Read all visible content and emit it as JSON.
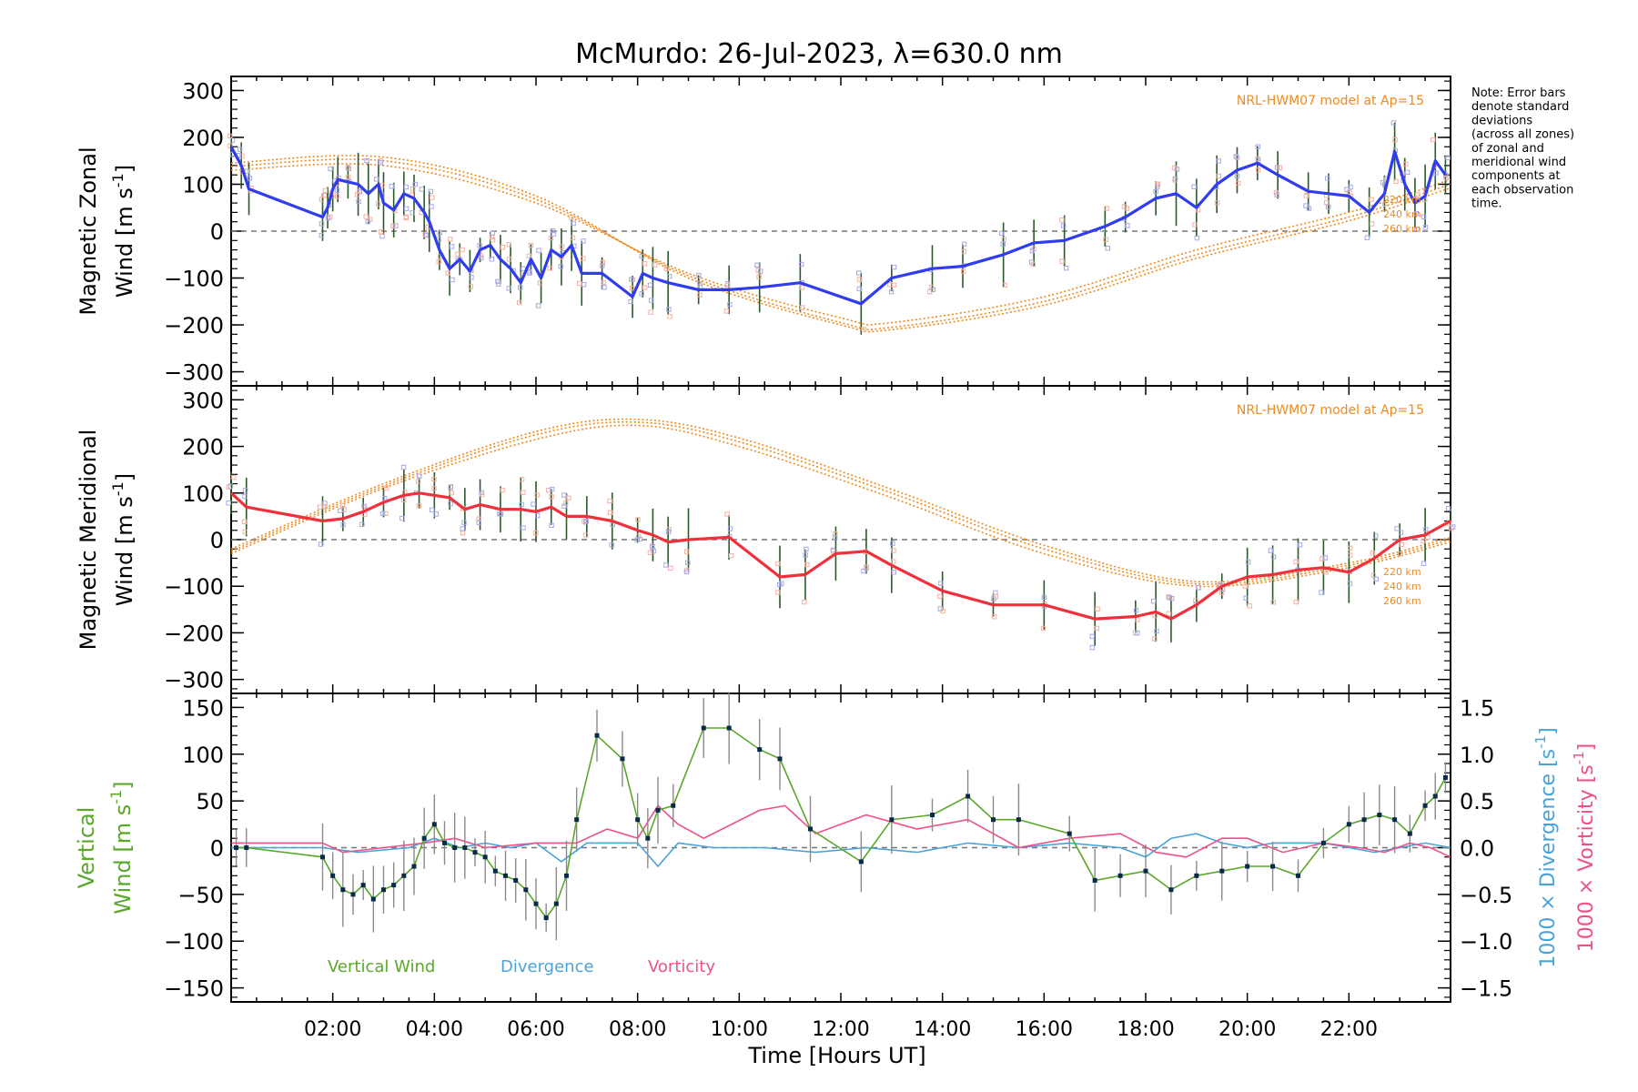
{
  "title": "McMurdo: 26-Jul-2023, λ=630.0 nm",
  "note": [
    "Note: Error bars",
    "denote standard",
    "deviations",
    "(across all zones)",
    "of zonal and",
    "meridional wind",
    "components at",
    "each observation",
    "time."
  ],
  "xlabel": "Time [Hours UT]",
  "x_ticks": [
    "02:00",
    "04:00",
    "06:00",
    "08:00",
    "10:00",
    "12:00",
    "14:00",
    "16:00",
    "18:00",
    "20:00",
    "22:00"
  ],
  "model_label": "NRL-HWM07 model at Ap=15",
  "altitudes": [
    "220 km",
    "240 km",
    "260 km"
  ],
  "legend": {
    "vertical": "Vertical Wind",
    "divergence": "Divergence",
    "vorticity": "Vorticity"
  },
  "colors": {
    "zonal": "#2f3cf0",
    "meridional": "#f0303a",
    "vertical": "#5aa82a",
    "divergence": "#4aa3d8",
    "vorticity": "#ef4f8a",
    "model": "#f08a1e",
    "scatter": "#a8a8e8",
    "errbar": "#2a5a2a",
    "point": "#0a2a4a"
  },
  "panels": {
    "zonal": {
      "ylabel1": "Magnetic Zonal",
      "ylabel2": "Wind [m s",
      "sup": "-1",
      "ylabel_end": "]",
      "ticks": [
        "300",
        "200",
        "100",
        "0",
        "−100",
        "−200",
        "−300"
      ]
    },
    "meridional": {
      "ylabel1": "Magnetic Meridional",
      "ylabel2": "Wind [m s",
      "sup": "-1",
      "ylabel_end": "]",
      "ticks": [
        "300",
        "200",
        "100",
        "0",
        "−100",
        "−200",
        "−300"
      ]
    },
    "vertical": {
      "ylabel1": "Vertical",
      "ylabel2": "Wind [m s",
      "sup": "-1",
      "ylabel_end": "]",
      "ticks": [
        "150",
        "100",
        "50",
        "0",
        "−50",
        "−100",
        "−150"
      ],
      "right_ticks": [
        "1.5",
        "1.0",
        "0.5",
        "0.0",
        "−0.5",
        "−1.0",
        "−1.5"
      ],
      "right_label_div": "1000 × Divergence [s",
      "right_label_vor": "1000 × Vorticity [s",
      "right_sup": "-1",
      "right_end": "]"
    }
  },
  "chart_data": [
    {
      "type": "line",
      "title": "Magnetic Zonal Wind",
      "ylabel": "Magnetic Zonal Wind [m s-1]",
      "xlim": [
        0,
        24
      ],
      "ylim": [
        -330,
        330
      ],
      "series": [
        {
          "name": "Zonal wind",
          "x": [
            0.0,
            0.2,
            0.35,
            1.8,
            1.9,
            2.0,
            2.1,
            2.3,
            2.5,
            2.7,
            2.9,
            3.0,
            3.2,
            3.4,
            3.6,
            3.8,
            3.9,
            4.1,
            4.3,
            4.5,
            4.7,
            4.9,
            5.1,
            5.3,
            5.5,
            5.7,
            5.9,
            6.1,
            6.3,
            6.5,
            6.7,
            6.9,
            7.3,
            7.9,
            8.1,
            8.3,
            8.6,
            9.2,
            9.8,
            10.4,
            11.2,
            12.4,
            13.0,
            13.8,
            14.4,
            15.2,
            15.8,
            16.4,
            17.2,
            17.6,
            18.2,
            18.6,
            19.0,
            19.4,
            19.8,
            20.2,
            20.6,
            21.2,
            21.6,
            22.0,
            22.4,
            22.7,
            22.9,
            23.1,
            23.3,
            23.5,
            23.7,
            23.9
          ],
          "values": [
            180,
            140,
            90,
            30,
            50,
            90,
            110,
            105,
            100,
            80,
            100,
            60,
            45,
            80,
            70,
            40,
            20,
            -40,
            -80,
            -60,
            -85,
            -40,
            -30,
            -60,
            -80,
            -110,
            -60,
            -100,
            -40,
            -55,
            -30,
            -90,
            -90,
            -140,
            -90,
            -100,
            -110,
            -125,
            -125,
            -120,
            -110,
            -155,
            -100,
            -80,
            -75,
            -50,
            -25,
            -20,
            10,
            30,
            70,
            80,
            50,
            100,
            130,
            145,
            120,
            85,
            80,
            75,
            40,
            80,
            170,
            100,
            60,
            75,
            150,
            120
          ]
        },
        {
          "name": "NRL-HWM07 220 km",
          "x": [
            0,
            3,
            6,
            9,
            12,
            13,
            16,
            19,
            22,
            24
          ],
          "values": [
            130,
            140,
            60,
            -90,
            -185,
            -195,
            -140,
            -40,
            40,
            110
          ]
        },
        {
          "name": "NRL-HWM07 240 km",
          "x": [
            0,
            3,
            6,
            9,
            12,
            13,
            16,
            19,
            22,
            24
          ],
          "values": [
            138,
            150,
            68,
            -95,
            -195,
            -205,
            -150,
            -50,
            30,
            100
          ]
        },
        {
          "name": "NRL-HWM07 260 km",
          "x": [
            0,
            3,
            6,
            9,
            12,
            13,
            16,
            19,
            22,
            24
          ],
          "values": [
            145,
            158,
            75,
            -100,
            -200,
            -210,
            -158,
            -58,
            22,
            92
          ]
        }
      ]
    },
    {
      "type": "line",
      "title": "Magnetic Meridional Wind",
      "ylabel": "Magnetic Meridional Wind [m s-1]",
      "xlim": [
        0,
        24
      ],
      "ylim": [
        -330,
        330
      ],
      "series": [
        {
          "name": "Meridional wind",
          "x": [
            0.0,
            0.3,
            1.8,
            2.2,
            2.6,
            3.0,
            3.4,
            3.7,
            4.0,
            4.3,
            4.6,
            4.9,
            5.3,
            5.7,
            6.0,
            6.3,
            6.6,
            7.0,
            7.5,
            8.0,
            8.3,
            8.6,
            9.0,
            9.8,
            10.8,
            11.3,
            11.9,
            12.5,
            13.0,
            14.0,
            15.0,
            16.0,
            17.0,
            17.8,
            18.2,
            18.5,
            19.0,
            19.5,
            20.0,
            20.5,
            21.0,
            21.5,
            22.0,
            22.5,
            23.0,
            23.5,
            24.0
          ],
          "values": [
            100,
            70,
            40,
            45,
            60,
            80,
            95,
            100,
            95,
            90,
            65,
            75,
            65,
            65,
            60,
            70,
            50,
            50,
            40,
            20,
            10,
            -5,
            0,
            5,
            -80,
            -75,
            -30,
            -25,
            -55,
            -110,
            -140,
            -140,
            -170,
            -165,
            -155,
            -170,
            -140,
            -100,
            -80,
            -75,
            -65,
            -60,
            -70,
            -40,
            0,
            10,
            40
          ]
        },
        {
          "name": "NRL-HWM07 220 km",
          "x": [
            0,
            3,
            6,
            8,
            10,
            13,
            16,
            19,
            22,
            24
          ],
          "values": [
            -30,
            110,
            215,
            245,
            200,
            90,
            -30,
            -100,
            -60,
            -5
          ]
        },
        {
          "name": "NRL-HWM07 240 km",
          "x": [
            0,
            3,
            6,
            8,
            10,
            13,
            16,
            19,
            22,
            24
          ],
          "values": [
            -25,
            115,
            225,
            252,
            210,
            100,
            -20,
            -95,
            -55,
            0
          ]
        },
        {
          "name": "NRL-HWM07 260 km",
          "x": [
            0,
            3,
            6,
            8,
            10,
            13,
            16,
            19,
            22,
            24
          ],
          "values": [
            -20,
            120,
            232,
            258,
            218,
            108,
            -12,
            -90,
            -50,
            5
          ]
        }
      ]
    },
    {
      "type": "line",
      "title": "Vertical Wind, Divergence, Vorticity",
      "ylabel": "Vertical Wind [m s-1]",
      "ylabel_right": "1000 × Divergence [s-1] / 1000 × Vorticity [s-1]",
      "xlim": [
        0,
        24
      ],
      "ylim": [
        -165,
        165
      ],
      "ylim_right": [
        -1.65,
        1.65
      ],
      "series": [
        {
          "name": "Vertical Wind",
          "x": [
            0.1,
            0.3,
            1.8,
            2.0,
            2.2,
            2.4,
            2.6,
            2.8,
            3.0,
            3.2,
            3.4,
            3.6,
            3.8,
            4.0,
            4.2,
            4.4,
            4.6,
            4.8,
            5.0,
            5.2,
            5.4,
            5.6,
            5.8,
            6.0,
            6.2,
            6.4,
            6.6,
            6.8,
            7.2,
            7.7,
            8.0,
            8.2,
            8.4,
            8.7,
            9.3,
            9.8,
            10.4,
            10.8,
            11.4,
            12.4,
            13.0,
            13.8,
            14.5,
            15.0,
            15.5,
            16.5,
            17.0,
            17.5,
            18.0,
            18.5,
            19.0,
            19.5,
            20.0,
            20.5,
            21.0,
            21.5,
            22.0,
            22.3,
            22.6,
            22.9,
            23.2,
            23.5,
            23.7,
            23.9
          ],
          "values": [
            0,
            0,
            -10,
            -30,
            -45,
            -50,
            -40,
            -55,
            -45,
            -40,
            -30,
            -20,
            10,
            25,
            5,
            0,
            0,
            -5,
            -10,
            -25,
            -30,
            -35,
            -45,
            -60,
            -75,
            -60,
            -30,
            30,
            120,
            95,
            30,
            10,
            40,
            45,
            128,
            128,
            105,
            95,
            20,
            -15,
            30,
            35,
            55,
            30,
            30,
            15,
            -35,
            -30,
            -25,
            -45,
            -30,
            -25,
            -20,
            -20,
            -30,
            5,
            25,
            30,
            35,
            30,
            15,
            45,
            55,
            75
          ]
        },
        {
          "name": "Divergence",
          "x": [
            0,
            1.8,
            2.5,
            3.5,
            4.0,
            4.5,
            5.0,
            5.5,
            6.0,
            6.5,
            7.0,
            7.5,
            8.0,
            8.4,
            8.8,
            9.5,
            10.5,
            11.5,
            12.5,
            13.5,
            14.5,
            15.5,
            16.5,
            17.5,
            18.0,
            18.5,
            19.0,
            19.5,
            20.0,
            20.5,
            21.5,
            22.5,
            23.5,
            24.0
          ],
          "values": [
            0.0,
            0.0,
            -0.05,
            0.0,
            0.1,
            0.0,
            0.05,
            0.0,
            0.05,
            -0.15,
            0.05,
            0.05,
            0.05,
            -0.2,
            0.05,
            0.0,
            0.0,
            -0.05,
            0.0,
            -0.05,
            0.05,
            0.0,
            0.05,
            0.0,
            -0.1,
            0.1,
            0.15,
            0.05,
            0.0,
            0.05,
            0.05,
            -0.05,
            0.05,
            0.0
          ]
        },
        {
          "name": "Vorticity",
          "x": [
            0,
            1.8,
            2.2,
            3.0,
            3.8,
            4.4,
            5.0,
            6.0,
            6.8,
            7.4,
            8.0,
            8.4,
            8.8,
            9.3,
            10.4,
            10.9,
            11.5,
            12.5,
            13.5,
            14.5,
            15.5,
            16.5,
            17.5,
            18.2,
            18.8,
            19.5,
            20.0,
            20.7,
            21.5,
            22.2,
            22.7,
            23.2,
            23.6,
            24.0
          ],
          "values": [
            0.05,
            0.05,
            -0.05,
            0.0,
            0.05,
            0.1,
            0.0,
            0.05,
            0.05,
            0.2,
            0.1,
            0.45,
            0.25,
            0.1,
            0.4,
            0.45,
            0.15,
            0.35,
            0.2,
            0.3,
            0.0,
            0.1,
            0.15,
            -0.05,
            -0.1,
            0.1,
            0.1,
            -0.05,
            0.05,
            0.0,
            -0.05,
            0.05,
            0.0,
            -0.1
          ]
        }
      ]
    }
  ]
}
